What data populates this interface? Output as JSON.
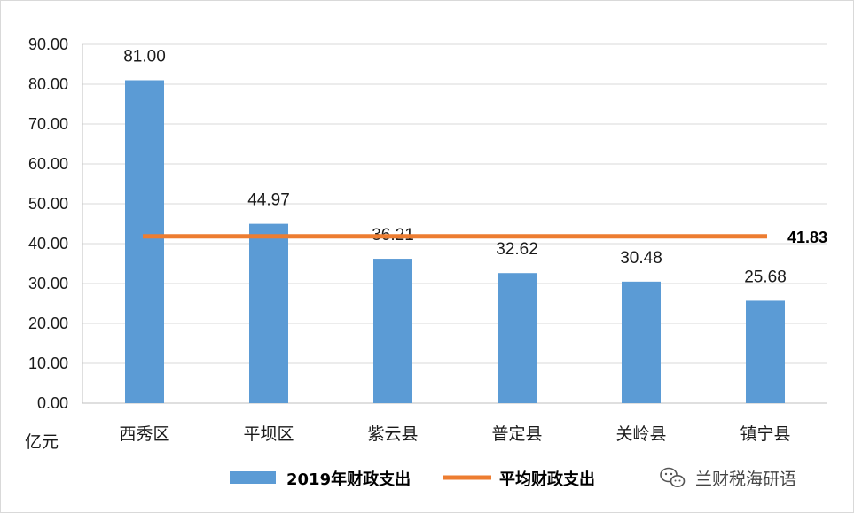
{
  "chart_data": {
    "type": "bar",
    "categories": [
      "西秀区",
      "平坝区",
      "紫云县",
      "普定县",
      "关岭县",
      "镇宁县"
    ],
    "series": [
      {
        "name": "2019年财政支出",
        "type": "bar",
        "color": "#5b9bd5",
        "values": [
          81.0,
          44.97,
          36.21,
          32.62,
          30.48,
          25.68
        ],
        "labels": [
          "81.00",
          "44.97",
          "36.21",
          "32.62",
          "30.48",
          "25.68"
        ]
      },
      {
        "name": "平均财政支出",
        "type": "line",
        "color": "#ed7d31",
        "value": 41.83,
        "label": "41.83"
      }
    ],
    "ylim": [
      0,
      90
    ],
    "yticks": [
      "0.00",
      "10.00",
      "20.00",
      "30.00",
      "40.00",
      "50.00",
      "60.00",
      "70.00",
      "80.00",
      "90.00"
    ],
    "ytick_values": [
      0,
      10,
      20,
      30,
      40,
      50,
      60,
      70,
      80,
      90
    ],
    "unit_label": "亿元",
    "grid": true,
    "legend_position": "bottom"
  },
  "watermark": {
    "text": "兰财税海研语",
    "icon": "wechat-icon"
  }
}
